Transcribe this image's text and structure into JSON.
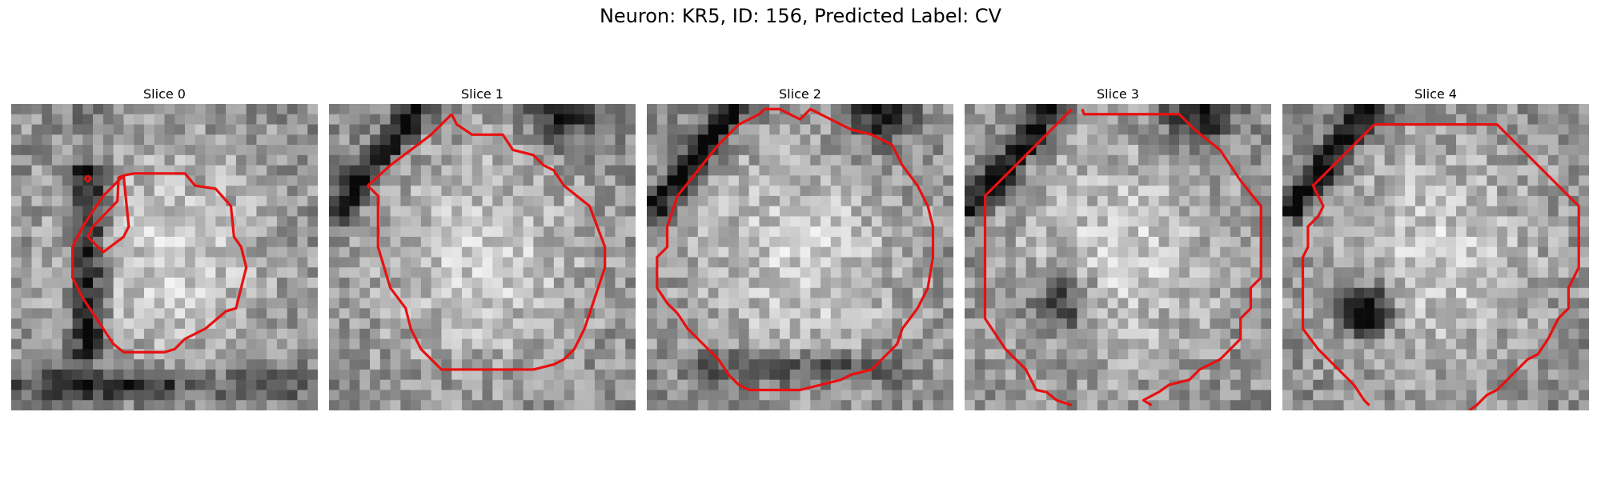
{
  "figure": {
    "title": "Neuron: KR5, ID: 156, Predicted Label: CV"
  },
  "panels": [
    {
      "title": "Slice 0",
      "contour_color": "#e81010",
      "seed": 11,
      "dark_regions": [
        "left-vertical-band",
        "bottom-band"
      ]
    },
    {
      "title": "Slice 1",
      "contour_color": "#e81010",
      "seed": 23,
      "dark_regions": [
        "upper-left-diagonal",
        "top-right"
      ]
    },
    {
      "title": "Slice 2",
      "contour_color": "#e81010",
      "seed": 37,
      "dark_regions": [
        "upper-left-diagonal",
        "top-right",
        "bottom-ring"
      ]
    },
    {
      "title": "Slice 3",
      "contour_color": "#e81010",
      "seed": 41,
      "dark_regions": [
        "upper-left-diagonal",
        "top-right",
        "lower-left-blob"
      ]
    },
    {
      "title": "Slice 4",
      "contour_color": "#e81010",
      "seed": 53,
      "dark_regions": [
        "upper-left-diagonal",
        "center-left-dark-blob"
      ]
    }
  ]
}
